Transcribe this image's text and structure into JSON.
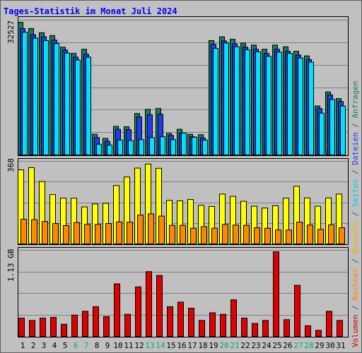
{
  "chart_data": [
    {
      "type": "bar",
      "title": "Tages-Statistik im Monat Juli 2024",
      "ymax_label": "32527",
      "ylim": [
        0,
        32527
      ],
      "grid": true,
      "categories": [
        "1",
        "2",
        "3",
        "4",
        "5",
        "6",
        "7",
        "8",
        "9",
        "10",
        "11",
        "12",
        "13",
        "14",
        "15",
        "16",
        "17",
        "18",
        "19",
        "20",
        "21",
        "22",
        "23",
        "24",
        "25",
        "26",
        "27",
        "28",
        "29",
        "30",
        "31"
      ],
      "weekend_days": [
        "6",
        "7",
        "13",
        "14",
        "20",
        "21",
        "27",
        "28"
      ],
      "series": [
        {
          "name": "Anfragen",
          "color": "#157e5a",
          "values": [
            32000,
            30500,
            29500,
            28800,
            26000,
            24500,
            25500,
            5000,
            4000,
            6900,
            6800,
            10000,
            11000,
            11200,
            5200,
            6200,
            5000,
            4900,
            27600,
            28500,
            27900,
            27000,
            26500,
            25500,
            26500,
            26100,
            25000,
            23900,
            11800,
            15200,
            13600
          ]
        },
        {
          "name": "Dateien",
          "color": "#1f3cf0",
          "values": [
            30500,
            29000,
            28500,
            27700,
            25300,
            23600,
            24300,
            4200,
            3300,
            6200,
            6100,
            9200,
            9700,
            9800,
            4700,
            5300,
            4400,
            4100,
            26700,
            27500,
            26800,
            26000,
            25500,
            24500,
            25500,
            25000,
            24100,
            23000,
            11200,
            14500,
            12900
          ]
        },
        {
          "name": "Seiten",
          "color": "#00e0ff",
          "values": [
            29600,
            28200,
            27600,
            26900,
            24600,
            22900,
            23600,
            2600,
            2400,
            3600,
            3500,
            3700,
            4200,
            4400,
            3700,
            5300,
            4300,
            3600,
            25700,
            27000,
            26100,
            25400,
            24900,
            23800,
            24800,
            24500,
            23400,
            22400,
            10100,
            13400,
            11800
          ]
        }
      ]
    },
    {
      "type": "bar",
      "ymax_label": "368",
      "ylim": [
        0,
        368
      ],
      "grid": true,
      "categories": [
        "1",
        "2",
        "3",
        "4",
        "5",
        "6",
        "7",
        "8",
        "9",
        "10",
        "11",
        "12",
        "13",
        "14",
        "15",
        "16",
        "17",
        "18",
        "19",
        "20",
        "21",
        "22",
        "23",
        "24",
        "25",
        "26",
        "27",
        "28",
        "29",
        "30",
        "31"
      ],
      "series": [
        {
          "name": "Besuche",
          "color": "#ffff00",
          "values": [
            330,
            340,
            278,
            220,
            204,
            204,
            165,
            178,
            181,
            260,
            298,
            338,
            356,
            337,
            194,
            192,
            198,
            172,
            167,
            222,
            212,
            190,
            168,
            160,
            170,
            204,
            257,
            205,
            168,
            205,
            222
          ]
        },
        {
          "name": "Rechner",
          "color": "#ff8800",
          "values": [
            110,
            108,
            100,
            91,
            82,
            95,
            87,
            87,
            91,
            98,
            97,
            129,
            134,
            124,
            83,
            83,
            70,
            77,
            70,
            87,
            84,
            83,
            72,
            70,
            62,
            62,
            97,
            84,
            65,
            85,
            72
          ]
        }
      ]
    },
    {
      "type": "bar",
      "ymax_label": "1.13 GB",
      "ylim": [
        0,
        1.13
      ],
      "grid": true,
      "categories": [
        "1",
        "2",
        "3",
        "4",
        "5",
        "6",
        "7",
        "8",
        "9",
        "10",
        "11",
        "12",
        "13",
        "14",
        "15",
        "16",
        "17",
        "18",
        "19",
        "20",
        "21",
        "22",
        "23",
        "24",
        "25",
        "26",
        "27",
        "28",
        "29",
        "30",
        "31"
      ],
      "series": [
        {
          "name": "Volumen",
          "color": "#e00000",
          "values": [
            0.24,
            0.21,
            0.24,
            0.25,
            0.16,
            0.28,
            0.33,
            0.39,
            0.26,
            0.69,
            0.29,
            0.65,
            0.85,
            0.8,
            0.39,
            0.45,
            0.37,
            0.21,
            0.31,
            0.29,
            0.48,
            0.24,
            0.17,
            0.21,
            1.11,
            0.22,
            0.67,
            0.14,
            0.08,
            0.33,
            0.21
          ]
        }
      ]
    }
  ],
  "legend_right": [
    {
      "text": "Volumen",
      "color": "#cc0000"
    },
    {
      "text": " / ",
      "color": "#555555"
    },
    {
      "text": "Rechner",
      "color": "#ff8800"
    },
    {
      "text": " / ",
      "color": "#555555"
    },
    {
      "text": "Besuche",
      "color": "#ffaa00"
    },
    {
      "text": " / ",
      "color": "#555555"
    },
    {
      "text": "Seiten",
      "color": "#00c8e8"
    },
    {
      "text": " / ",
      "color": "#555555"
    },
    {
      "text": "Dateien",
      "color": "#1f3cf0"
    },
    {
      "text": " / ",
      "color": "#555555"
    },
    {
      "text": "Anfragen",
      "color": "#157e5a"
    }
  ],
  "colors": {
    "title": "#0000ff",
    "weekend_label": "#00aa77",
    "weekday_label": "#000000",
    "panel_bg": "#c0c0c0"
  }
}
